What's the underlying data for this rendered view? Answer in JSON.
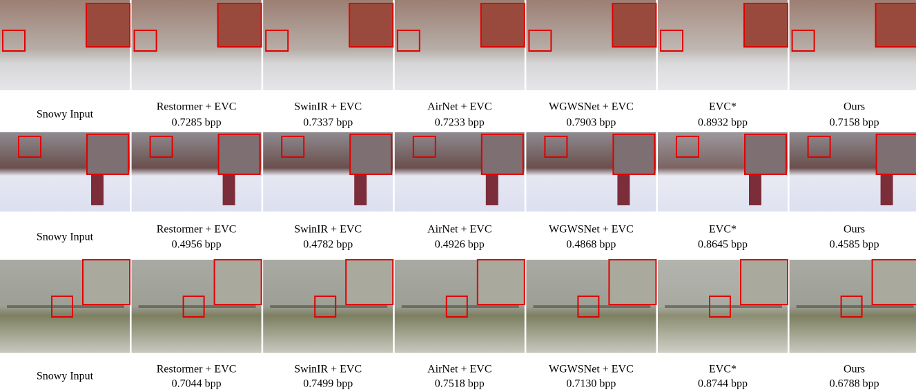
{
  "rows": [
    {
      "cells": [
        {
          "label": "Snowy Input"
        },
        {
          "label": "Restormer + EVC",
          "bpp": "0.7285 bpp"
        },
        {
          "label": "SwinIR + EVC",
          "bpp": "0.7337 bpp"
        },
        {
          "label": "AirNet + EVC",
          "bpp": "0.7233 bpp"
        },
        {
          "label": "WGWSNet + EVC",
          "bpp": "0.7903 bpp"
        },
        {
          "label": "EVC*",
          "bpp": "0.8932 bpp"
        },
        {
          "label": "Ours",
          "bpp": "0.7158 bpp"
        }
      ]
    },
    {
      "cells": [
        {
          "label": "Snowy Input"
        },
        {
          "label": "Restormer + EVC",
          "bpp": "0.4956 bpp"
        },
        {
          "label": "SwinIR + EVC",
          "bpp": "0.4782 bpp"
        },
        {
          "label": "AirNet + EVC",
          "bpp": "0.4926 bpp"
        },
        {
          "label": "WGWSNet + EVC",
          "bpp": "0.4868 bpp"
        },
        {
          "label": "EVC*",
          "bpp": "0.8645 bpp"
        },
        {
          "label": "Ours",
          "bpp": "0.4585 bpp"
        }
      ]
    },
    {
      "cells": [
        {
          "label": "Snowy Input"
        },
        {
          "label": "Restormer + EVC",
          "bpp": "0.7044 bpp"
        },
        {
          "label": "SwinIR + EVC",
          "bpp": "0.7499 bpp"
        },
        {
          "label": "AirNet + EVC",
          "bpp": "0.7518 bpp"
        },
        {
          "label": "WGWSNet + EVC",
          "bpp": "0.7130 bpp"
        },
        {
          "label": "EVC*",
          "bpp": "0.8744 bpp"
        },
        {
          "label": "Ours",
          "bpp": "0.6788 bpp"
        }
      ]
    }
  ]
}
